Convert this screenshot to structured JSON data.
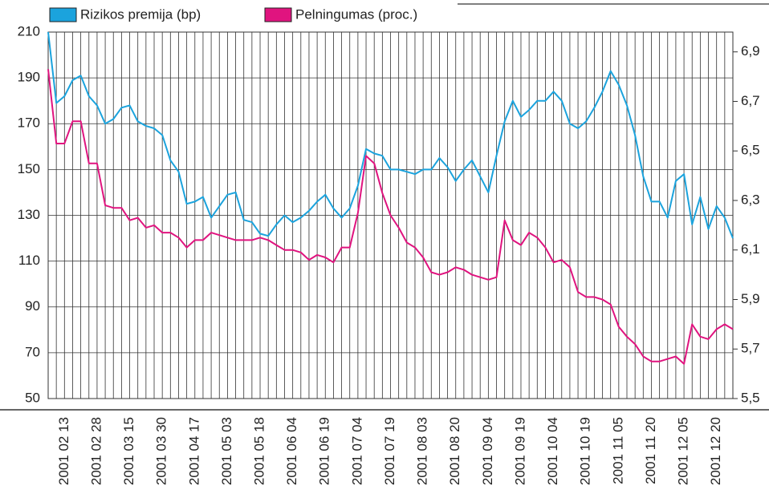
{
  "chart_data": {
    "type": "line",
    "legend": "top-left",
    "grid": true,
    "categories": [
      null,
      null,
      "2001 02 13",
      null,
      null,
      null,
      "2001 02 28",
      null,
      null,
      null,
      "2001 03 15",
      null,
      null,
      null,
      "2001 03 30",
      null,
      null,
      null,
      "2001 04 17",
      null,
      null,
      null,
      "2001 05 03",
      null,
      null,
      null,
      "2001 05 18",
      null,
      null,
      null,
      "2001 06 04",
      null,
      null,
      null,
      "2001 06 19",
      null,
      null,
      null,
      "2001 07 04",
      null,
      null,
      null,
      "2001 07 19",
      null,
      null,
      null,
      "2001 08 03",
      null,
      null,
      null,
      "2001 08 20",
      null,
      null,
      null,
      "2001 09 04",
      null,
      null,
      null,
      "2001 09 19",
      null,
      null,
      null,
      "2001 10 04",
      null,
      null,
      null,
      "2001 10 19",
      null,
      null,
      null,
      "2001 11 05",
      null,
      null,
      null,
      "2001 11 20",
      null,
      null,
      null,
      "2001 12 05",
      null,
      null,
      null,
      "2001 12 20",
      null,
      null
    ],
    "ylim": [
      50,
      210
    ],
    "yticks": [
      50,
      70,
      90,
      110,
      130,
      150,
      170,
      190,
      210
    ],
    "y2lim": [
      5.5,
      6.98
    ],
    "y2ticks": [
      {
        "value": 5.5,
        "label": "5,5"
      },
      {
        "value": 5.7,
        "label": "5,7"
      },
      {
        "value": 5.9,
        "label": "5,9"
      },
      {
        "value": 6.1,
        "label": "6,1"
      },
      {
        "value": 6.3,
        "label": "6,3"
      },
      {
        "value": 6.5,
        "label": "6,5"
      },
      {
        "value": 6.7,
        "label": "6,7"
      },
      {
        "value": 6.9,
        "label": "6,9"
      }
    ],
    "series": [
      {
        "name": "Rizikos premija (bp)",
        "color": "#1ba3dd",
        "values": [
          210,
          179,
          182,
          189,
          191,
          182,
          178,
          170,
          172,
          177,
          178,
          171,
          169,
          168,
          165,
          154,
          149,
          135,
          136,
          138,
          129,
          134,
          139,
          140,
          128,
          127,
          122,
          121,
          126,
          130,
          127,
          129,
          132,
          136,
          139,
          133,
          129,
          133,
          143,
          159,
          157,
          156,
          150,
          150,
          149,
          148,
          150,
          150,
          155,
          151,
          145,
          150,
          154,
          147,
          140,
          156,
          171,
          180,
          173,
          176,
          180,
          180,
          184,
          180,
          170,
          168,
          171,
          177,
          184,
          193,
          187,
          178,
          165,
          147,
          136,
          136,
          129,
          145,
          148,
          126,
          138,
          124,
          134,
          129,
          120
        ]
      },
      {
        "name": "Pelningumas (proc.)",
        "color": "#e0147f",
        "axis": "y2",
        "values": [
          6.83,
          6.53,
          6.53,
          6.62,
          6.62,
          6.45,
          6.45,
          6.28,
          6.27,
          6.27,
          6.22,
          6.23,
          6.19,
          6.2,
          6.17,
          6.17,
          6.15,
          6.11,
          6.14,
          6.14,
          6.17,
          6.16,
          6.15,
          6.14,
          6.14,
          6.14,
          6.15,
          6.14,
          6.12,
          6.1,
          6.1,
          6.09,
          6.06,
          6.08,
          6.07,
          6.05,
          6.11,
          6.11,
          6.25,
          6.48,
          6.45,
          6.33,
          6.24,
          6.19,
          6.13,
          6.11,
          6.07,
          6.01,
          6.0,
          6.01,
          6.03,
          6.02,
          6.0,
          5.99,
          5.98,
          5.99,
          6.22,
          6.14,
          6.12,
          6.17,
          6.15,
          6.11,
          6.05,
          6.06,
          6.03,
          5.93,
          5.91,
          5.91,
          5.9,
          5.88,
          5.79,
          5.75,
          5.72,
          5.67,
          5.65,
          5.65,
          5.66,
          5.67,
          5.64,
          5.8,
          5.75,
          5.74,
          5.78,
          5.8,
          5.78
        ]
      }
    ]
  }
}
